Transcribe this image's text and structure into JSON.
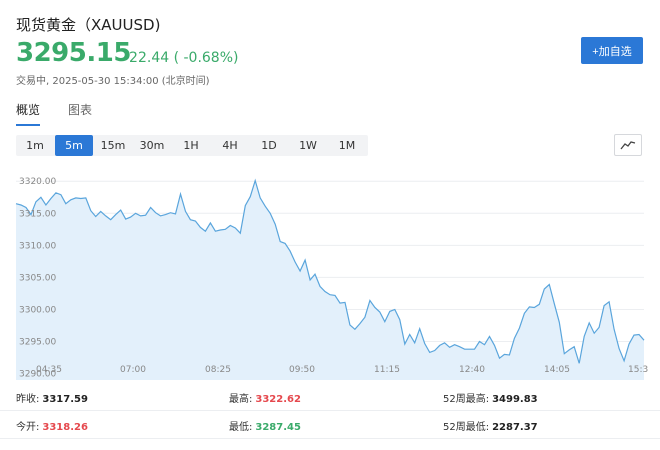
{
  "header": {
    "title": "现货黄金（XAUUSD)",
    "price": "3295.15",
    "change": "-22.44 ( -0.68%)",
    "status": "交易中, 2025-05-30 15:34:00 (北京时间)",
    "watch_button": "+加自选"
  },
  "tabs": [
    {
      "label": "概览",
      "active": true
    },
    {
      "label": "图表",
      "active": false
    }
  ],
  "ranges": [
    {
      "label": "1m",
      "active": false
    },
    {
      "label": "5m",
      "active": true
    },
    {
      "label": "15m",
      "active": false
    },
    {
      "label": "30m",
      "active": false
    },
    {
      "label": "1H",
      "active": false
    },
    {
      "label": "4H",
      "active": false
    },
    {
      "label": "1D",
      "active": false
    },
    {
      "label": "1W",
      "active": false
    },
    {
      "label": "1M",
      "active": false
    }
  ],
  "chart_type_icon": "line-chart-icon",
  "colors": {
    "accent": "#2b78d6",
    "down": "#3aaa6a",
    "up": "#e5484d",
    "line": "#5aa5dc",
    "area": "#e3f0fb"
  },
  "chart_data": {
    "type": "area",
    "y_ticks": [
      "3320.00",
      "3315.00",
      "3310.00",
      "3305.00",
      "3300.00",
      "3295.00",
      "3290.00"
    ],
    "x_ticks": [
      "04:35",
      "07:00",
      "08:25",
      "09:50",
      "11:15",
      "12:40",
      "14:05",
      "15:3"
    ],
    "ylim": [
      3289,
      3323
    ],
    "grid": true,
    "values": [
      3316.5,
      3316.3,
      3315.9,
      3314.8,
      3316.8,
      3317.5,
      3316.3,
      3317.3,
      3318.2,
      3317.9,
      3316.5,
      3317.1,
      3317.4,
      3317.3,
      3317.4,
      3315.4,
      3314.5,
      3315.3,
      3314.6,
      3314.0,
      3314.8,
      3315.5,
      3314.1,
      3314.4,
      3315.0,
      3314.6,
      3314.7,
      3315.9,
      3315.1,
      3314.6,
      3314.8,
      3315.1,
      3314.9,
      3318.0,
      3315.3,
      3314.0,
      3313.8,
      3312.8,
      3312.2,
      3313.5,
      3312.2,
      3312.4,
      3312.5,
      3313.1,
      3312.7,
      3311.9,
      3316.2,
      3317.6,
      3320.1,
      3317.4,
      3316.1,
      3315.0,
      3313.3,
      3310.6,
      3310.3,
      3309.1,
      3307.4,
      3306.0,
      3307.7,
      3304.6,
      3305.5,
      3303.6,
      3302.8,
      3302.3,
      3302.2,
      3301.0,
      3301.1,
      3297.6,
      3296.9,
      3297.8,
      3298.8,
      3301.4,
      3300.3,
      3299.6,
      3298.1,
      3299.7,
      3300.0,
      3298.4,
      3294.6,
      3296.1,
      3294.8,
      3297.0,
      3294.7,
      3293.3,
      3293.6,
      3294.4,
      3294.8,
      3294.1,
      3294.5,
      3294.2,
      3293.8,
      3293.8,
      3293.8,
      3295.0,
      3294.5,
      3295.8,
      3294.4,
      3292.4,
      3293.0,
      3292.9,
      3295.5,
      3297.1,
      3299.4,
      3300.4,
      3300.3,
      3300.8,
      3303.2,
      3303.9,
      3300.9,
      3298.0,
      3293.1,
      3293.7,
      3294.2,
      3291.6,
      3295.8,
      3297.9,
      3296.3,
      3297.2,
      3300.6,
      3301.2,
      3296.9,
      3293.9,
      3292.0,
      3294.6,
      3296.0,
      3296.1,
      3295.2
    ]
  },
  "stats": {
    "prev_close_label": "昨收:",
    "prev_close": "3317.59",
    "high_label": "最高:",
    "high": "3322.62",
    "high52_label": "52周最高:",
    "high52": "3499.83",
    "open_label": "今开:",
    "open": "3318.26",
    "low_label": "最低:",
    "low": "3287.45",
    "low52_label": "52周最低:",
    "low52": "2287.37"
  }
}
